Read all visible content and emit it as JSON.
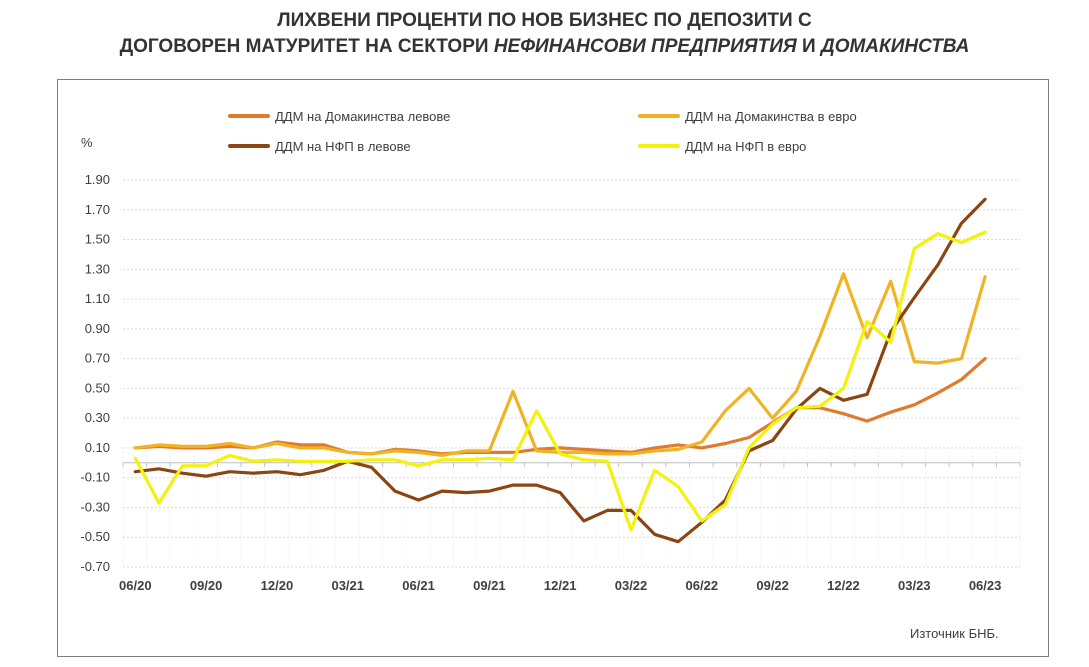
{
  "title": {
    "line1": "ЛИХВЕНИ ПРОЦЕНТИ ПО НОВ БИЗНЕС ПО ДЕПОЗИТИ С",
    "line2_part1": "ДОГОВОРЕН МАТУРИТЕТ НА СЕКТОРИ ",
    "line2_italic1": "НЕФИНАНСОВИ ПРЕДПРИЯТИЯ",
    "line2_part2": " И ",
    "line2_italic2": "ДОМАКИНСТВА"
  },
  "source": "Източник БНБ.",
  "chart_data": {
    "type": "line",
    "ylabel": "%",
    "ylim": [
      -0.7,
      1.9
    ],
    "yticks": [
      -0.7,
      -0.5,
      -0.3,
      -0.1,
      0.1,
      0.3,
      0.5,
      0.7,
      0.9,
      1.1,
      1.3,
      1.5,
      1.7,
      1.9
    ],
    "ytick_labels": [
      "-0.70",
      "-0.50",
      "-0.30",
      "-0.10",
      "0.10",
      "0.30",
      "0.50",
      "0.70",
      "0.90",
      "1.10",
      "1.30",
      "1.50",
      "1.70",
      "1.90"
    ],
    "grid": true,
    "legend_position": "top",
    "x_tick_labels": [
      "06/20",
      "09/20",
      "12/20",
      "03/21",
      "06/21",
      "09/21",
      "12/21",
      "03/22",
      "06/22",
      "09/22",
      "12/22",
      "03/23",
      "06/23"
    ],
    "x_tick_label_period_index": [
      0,
      3,
      6,
      9,
      12,
      15,
      18,
      21,
      24,
      27,
      30,
      33,
      36
    ],
    "period_count": 37,
    "series": [
      {
        "name": "ДДМ на Домакинства левове",
        "color": "#e07a2e",
        "values": [
          0.1,
          0.11,
          0.1,
          0.1,
          0.11,
          0.1,
          0.14,
          0.12,
          0.12,
          0.07,
          0.06,
          0.09,
          0.08,
          0.06,
          0.07,
          0.07,
          0.07,
          0.09,
          0.1,
          0.09,
          0.08,
          0.07,
          0.1,
          0.12,
          0.1,
          0.13,
          0.17,
          0.27,
          0.37,
          0.37,
          0.33,
          0.28,
          0.34,
          0.39,
          0.47,
          0.56,
          0.7
        ]
      },
      {
        "name": "ДДМ на Домакинства в евро",
        "color": "#f0b323",
        "values": [
          0.1,
          0.12,
          0.11,
          0.11,
          0.13,
          0.1,
          0.13,
          0.1,
          0.1,
          0.07,
          0.06,
          0.08,
          0.07,
          0.05,
          0.08,
          0.08,
          0.48,
          0.08,
          0.07,
          0.07,
          0.06,
          0.06,
          0.08,
          0.09,
          0.14,
          0.35,
          0.5,
          0.3,
          0.48,
          0.85,
          1.27,
          0.84,
          1.22,
          0.68,
          0.67,
          0.7,
          1.25
        ]
      },
      {
        "name": "ДДМ на НФП  в левове",
        "color": "#8b4513",
        "values": [
          -0.06,
          -0.04,
          -0.07,
          -0.09,
          -0.06,
          -0.07,
          -0.06,
          -0.08,
          -0.05,
          0.01,
          -0.03,
          -0.19,
          -0.25,
          -0.19,
          -0.2,
          -0.19,
          -0.15,
          -0.15,
          -0.2,
          -0.39,
          -0.32,
          -0.32,
          -0.48,
          -0.53,
          -0.4,
          -0.25,
          0.08,
          0.15,
          0.36,
          0.5,
          0.42,
          0.46,
          0.88,
          1.11,
          1.33,
          1.61,
          1.77
        ]
      },
      {
        "name": "ДДМ на НФП  в евро",
        "color": "#f2f20c",
        "values": [
          0.03,
          -0.27,
          -0.02,
          -0.02,
          0.05,
          0.01,
          0.02,
          0.01,
          0.01,
          0.01,
          0.02,
          0.02,
          -0.02,
          0.02,
          0.02,
          0.03,
          0.02,
          0.35,
          0.06,
          0.02,
          0.01,
          -0.45,
          -0.05,
          -0.16,
          -0.39,
          -0.28,
          0.1,
          0.26,
          0.37,
          0.38,
          0.5,
          0.95,
          0.81,
          1.44,
          1.54,
          1.48,
          1.55
        ]
      }
    ]
  }
}
